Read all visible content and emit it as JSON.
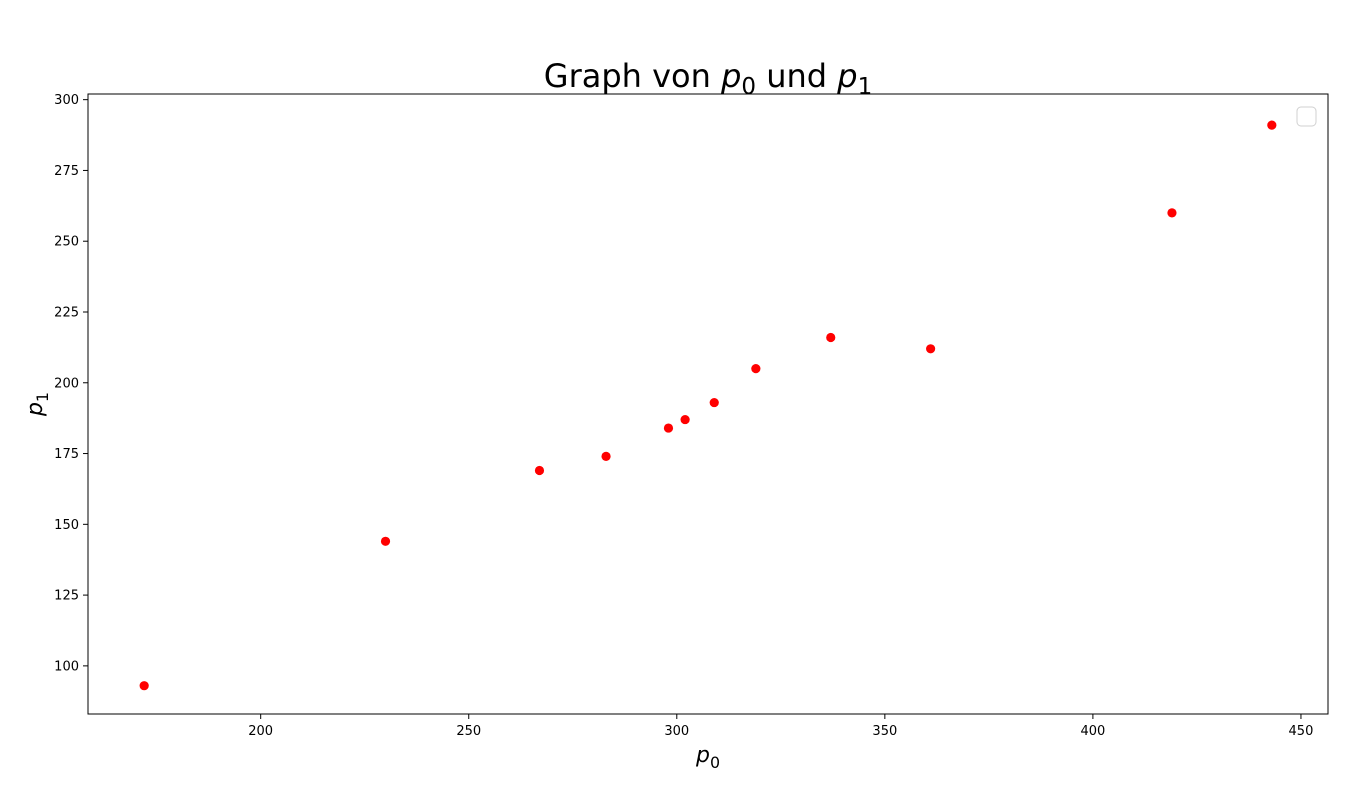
{
  "chart_data": {
    "type": "scatter",
    "title": {
      "prefix": "Graph von ",
      "var0": "p",
      "sub0": "0",
      "middle": " und ",
      "var1": "p",
      "sub1": "1"
    },
    "xlabel": {
      "var": "p",
      "sub": "0"
    },
    "ylabel": {
      "var": "p",
      "sub": "1"
    },
    "xlim": [
      158.5,
      456.5
    ],
    "ylim": [
      83,
      302
    ],
    "xticks": [
      200,
      250,
      300,
      350,
      400,
      450
    ],
    "yticks": [
      100,
      125,
      150,
      175,
      200,
      225,
      250,
      275,
      300
    ],
    "grid": false,
    "legend": {
      "placement": "top-right",
      "entries": []
    },
    "marker_color": "#ff0000",
    "points": [
      {
        "x": 172,
        "y": 93
      },
      {
        "x": 230,
        "y": 144
      },
      {
        "x": 267,
        "y": 169
      },
      {
        "x": 283,
        "y": 174
      },
      {
        "x": 298,
        "y": 184
      },
      {
        "x": 302,
        "y": 187
      },
      {
        "x": 309,
        "y": 193
      },
      {
        "x": 319,
        "y": 205
      },
      {
        "x": 337,
        "y": 216
      },
      {
        "x": 361,
        "y": 212
      },
      {
        "x": 419,
        "y": 260
      },
      {
        "x": 443,
        "y": 291
      }
    ]
  }
}
